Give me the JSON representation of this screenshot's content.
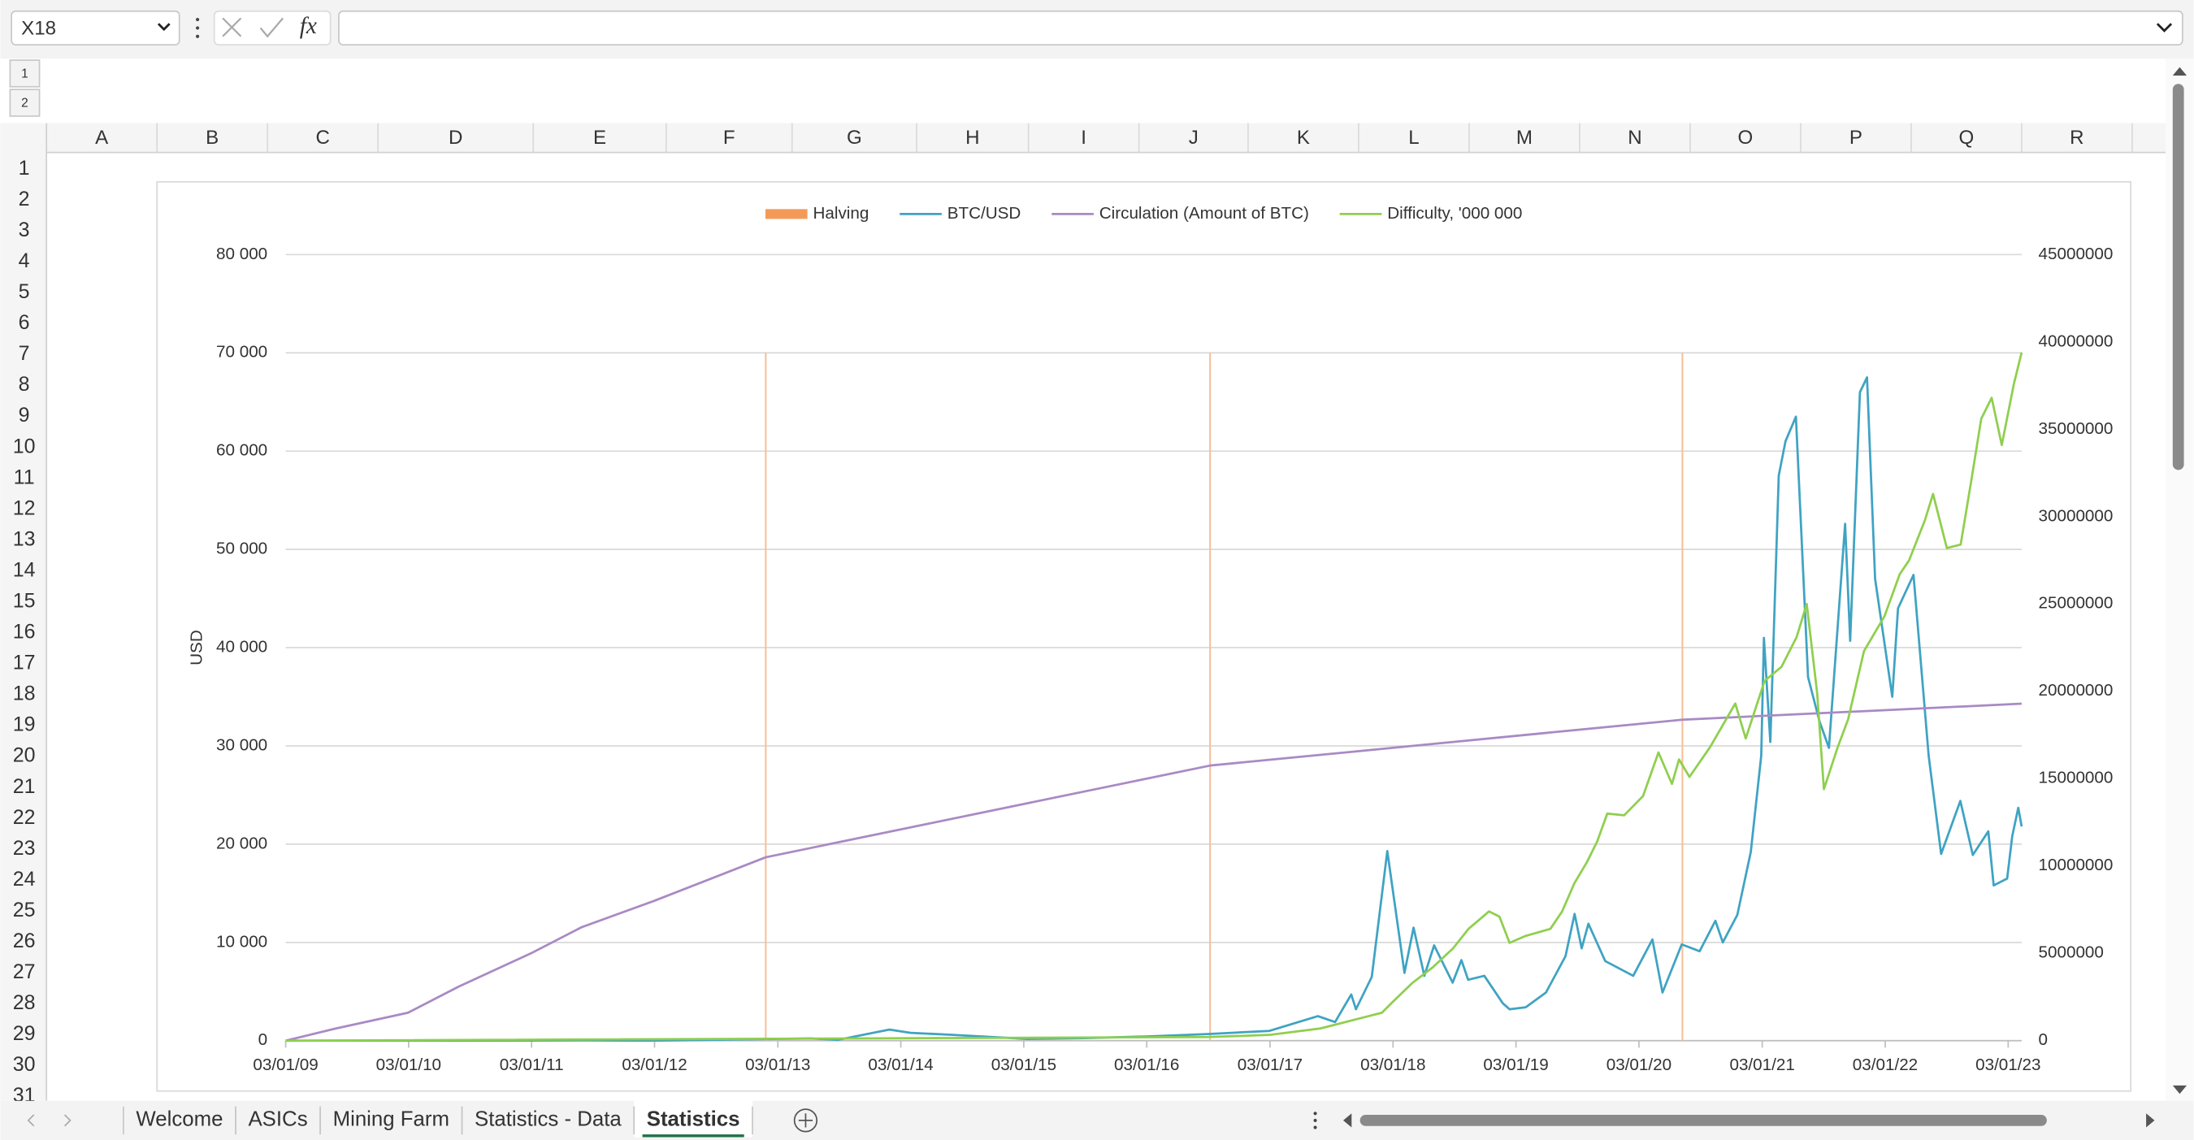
{
  "name_box": "X18",
  "formula_icon": "fx",
  "outline_levels": [
    "1",
    "2"
  ],
  "columns": [
    "A",
    "B",
    "C",
    "D",
    "E",
    "F",
    "G",
    "H",
    "I",
    "J",
    "K",
    "L",
    "M",
    "N",
    "O",
    "P",
    "Q",
    "R"
  ],
  "rows": [
    1,
    2,
    3,
    4,
    5,
    6,
    7,
    8,
    9,
    10,
    11,
    12,
    13,
    14,
    15,
    16,
    17,
    18,
    19,
    20,
    21,
    22,
    23,
    24,
    25,
    26,
    27,
    28,
    29,
    30,
    31
  ],
  "sheet_tabs": [
    "Welcome",
    "ASICs",
    "Mining Farm",
    "Statistics - Data",
    "Statistics"
  ],
  "active_tab": 4,
  "chart_data": {
    "type": "line",
    "y_label": "USD",
    "legend": "top",
    "grid": true,
    "xlim": [
      "2009-01-03",
      "2023-02-12"
    ],
    "xticks": [
      {
        "value": "2009-01-03",
        "label": "03/01/09"
      },
      {
        "value": "2010-01-03",
        "label": "03/01/10"
      },
      {
        "value": "2011-01-03",
        "label": "03/01/11"
      },
      {
        "value": "2012-01-03",
        "label": "03/01/12"
      },
      {
        "value": "2013-01-03",
        "label": "03/01/13"
      },
      {
        "value": "2014-01-03",
        "label": "03/01/14"
      },
      {
        "value": "2015-01-03",
        "label": "03/01/15"
      },
      {
        "value": "2016-01-03",
        "label": "03/01/16"
      },
      {
        "value": "2017-01-03",
        "label": "03/01/17"
      },
      {
        "value": "2018-01-03",
        "label": "03/01/18"
      },
      {
        "value": "2019-01-03",
        "label": "03/01/19"
      },
      {
        "value": "2020-01-03",
        "label": "03/01/20"
      },
      {
        "value": "2021-01-03",
        "label": "03/01/21"
      },
      {
        "value": "2022-01-03",
        "label": "03/01/22"
      },
      {
        "value": "2023-01-03",
        "label": "03/01/23"
      }
    ],
    "ylim": [
      0,
      80000
    ],
    "yticks": [
      0,
      {
        "value": 10000,
        "label": "10 000"
      },
      {
        "value": 20000,
        "label": "20 000"
      },
      {
        "value": 30000,
        "label": "30 000"
      },
      {
        "value": 40000,
        "label": "40 000"
      },
      {
        "value": 50000,
        "label": "50 000"
      },
      {
        "value": 60000,
        "label": "60 000"
      },
      {
        "value": 70000,
        "label": "70 000"
      },
      {
        "value": 80000,
        "label": "80 000"
      }
    ],
    "y2lim": [
      0,
      45000000
    ],
    "y2ticks": [
      0,
      5000000,
      10000000,
      15000000,
      20000000,
      25000000,
      30000000,
      35000000,
      40000000,
      45000000
    ],
    "series": [
      {
        "name": "Halving",
        "kind": "bar",
        "color": "#f39a59",
        "bar_color": "#f8bf98",
        "x": [
          "2012-11-28",
          "2016-07-09",
          "2020-05-11"
        ],
        "values": [
          70000,
          70000,
          70000
        ]
      },
      {
        "name": "BTC/USD",
        "color": "#3fa3c3",
        "x": [
          "2009-01-03",
          "2010-07-15",
          "2011-06-08",
          "2012-01-01",
          "2013-04-09",
          "2013-07-01",
          "2013-11-30",
          "2014-02-01",
          "2014-06-01",
          "2015-01-14",
          "2015-07-01",
          "2016-01-01",
          "2016-07-01",
          "2017-01-01",
          "2017-05-25",
          "2017-07-15",
          "2017-09-01",
          "2017-09-15",
          "2017-11-01",
          "2017-12-17",
          "2018-02-06",
          "2018-03-05",
          "2018-04-06",
          "2018-05-05",
          "2018-06-29",
          "2018-07-25",
          "2018-08-14",
          "2018-10-01",
          "2018-11-25",
          "2018-12-15",
          "2019-02-01",
          "2019-04-02",
          "2019-05-30",
          "2019-06-26",
          "2019-07-17",
          "2019-08-06",
          "2019-09-25",
          "2019-12-17",
          "2020-02-12",
          "2020-03-13",
          "2020-05-09",
          "2020-07-01",
          "2020-08-17",
          "2020-09-08",
          "2020-10-21",
          "2020-11-30",
          "2020-12-31",
          "2021-01-08",
          "2021-01-27",
          "2021-02-21",
          "2021-03-13",
          "2021-04-13",
          "2021-05-19",
          "2021-06-22",
          "2021-07-20",
          "2021-09-06",
          "2021-09-21",
          "2021-10-20",
          "2021-11-10",
          "2021-12-04",
          "2022-01-24",
          "2022-02-10",
          "2022-03-28",
          "2022-05-12",
          "2022-06-18",
          "2022-08-14",
          "2022-09-20",
          "2022-11-05",
          "2022-11-21",
          "2022-12-31",
          "2023-01-15",
          "2023-02-02",
          "2023-02-12"
        ],
        "values": [
          0,
          0.08,
          30,
          5,
          230,
          90,
          1130,
          800,
          600,
          180,
          260,
          430,
          670,
          1000,
          2500,
          1900,
          4700,
          3200,
          6500,
          19300,
          6900,
          11500,
          6600,
          9700,
          5900,
          8200,
          6200,
          6600,
          3800,
          3200,
          3400,
          4900,
          8600,
          12900,
          9400,
          11900,
          8100,
          6600,
          10300,
          4900,
          9800,
          9100,
          12200,
          10000,
          12800,
          19200,
          29000,
          41000,
          30400,
          57500,
          61000,
          63500,
          37000,
          32500,
          29800,
          52600,
          40700,
          66000,
          67500,
          47000,
          35000,
          44000,
          47400,
          29000,
          19000,
          24400,
          18900,
          21300,
          15800,
          16500,
          20800,
          23700,
          21800
        ]
      },
      {
        "name": "Circulation (Amount of BTC)",
        "color": "#a98ac4",
        "axis": "y2",
        "x": [
          "2009-01-03",
          "2009-06-01",
          "2010-01-01",
          "2010-06-01",
          "2011-01-01",
          "2011-06-01",
          "2012-01-01",
          "2012-11-28",
          "2016-07-09",
          "2020-05-11",
          "2023-02-12"
        ],
        "values": [
          0,
          700000,
          1600000,
          3100000,
          5000000,
          6500000,
          8000000,
          10500000,
          15750000,
          18375000,
          19290000
        ]
      },
      {
        "name": "Difficulty, '000 000",
        "color": "#8fcf4e",
        "axis": "y2",
        "x": [
          "2009-01-03",
          "2016-07-01",
          "2017-01-01",
          "2017-06-01",
          "2017-10-01",
          "2017-12-01",
          "2018-01-01",
          "2018-03-01",
          "2018-05-01",
          "2018-07-01",
          "2018-08-15",
          "2018-10-15",
          "2018-11-15",
          "2018-12-15",
          "2019-02-01",
          "2019-04-15",
          "2019-05-20",
          "2019-06-25",
          "2019-08-01",
          "2019-09-01",
          "2019-10-01",
          "2019-11-20",
          "2020-01-15",
          "2020-03-01",
          "2020-04-10",
          "2020-05-01",
          "2020-06-01",
          "2020-08-01",
          "2020-10-15",
          "2020-11-15",
          "2021-01-10",
          "2021-03-01",
          "2021-04-15",
          "2021-05-15",
          "2021-06-15",
          "2021-07-05",
          "2021-08-15",
          "2021-09-15",
          "2021-11-01",
          "2022-01-01",
          "2022-02-15",
          "2022-03-15",
          "2022-05-01",
          "2022-05-25",
          "2022-07-05",
          "2022-08-15",
          "2022-09-15",
          "2022-10-15",
          "2022-11-15",
          "2022-12-15",
          "2023-01-20",
          "2023-02-12"
        ],
        "values": [
          0,
          210000,
          330000,
          700000,
          1300000,
          1600000,
          2200000,
          3300000,
          4200000,
          5300000,
          6400000,
          7400000,
          7100000,
          5600000,
          6000000,
          6400000,
          7400000,
          9000000,
          10200000,
          11400000,
          13000000,
          12900000,
          14000000,
          16500000,
          14700000,
          16100000,
          15100000,
          16800000,
          19300000,
          17300000,
          20600000,
          21400000,
          23100000,
          25000000,
          19900000,
          14400000,
          16800000,
          18400000,
          22300000,
          24300000,
          26700000,
          27500000,
          29800000,
          31300000,
          28200000,
          28400000,
          32000000,
          35600000,
          36800000,
          34100000,
          37600000,
          39400000
        ]
      }
    ]
  }
}
